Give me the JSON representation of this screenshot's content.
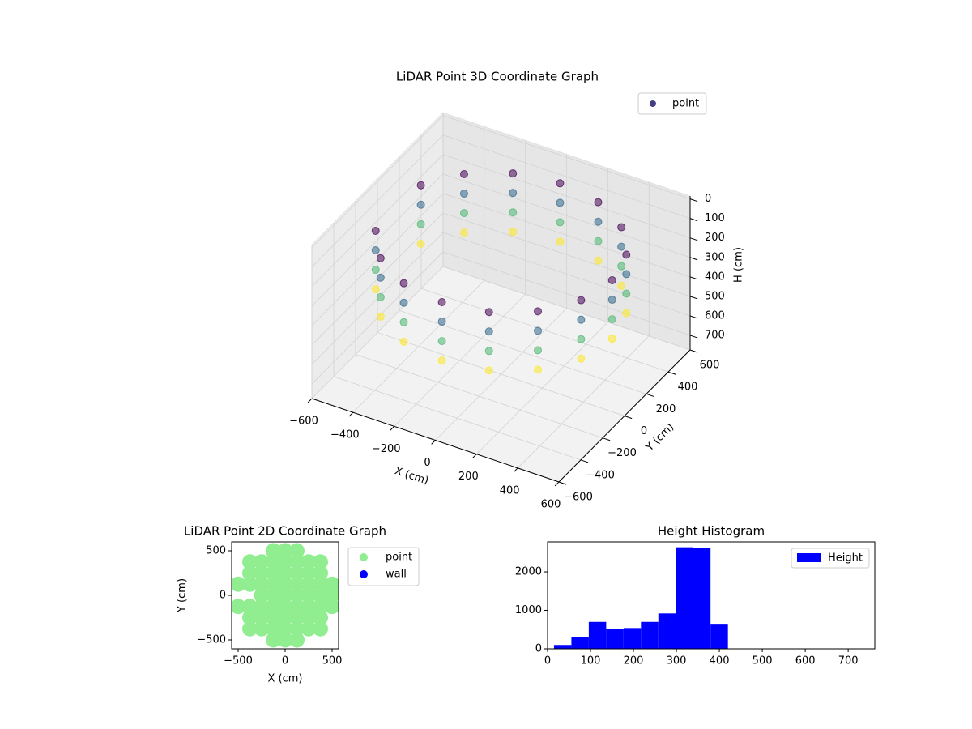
{
  "chart_data": [
    {
      "type": "scatter3d",
      "title": "LiDAR Point 3D Coordinate Graph",
      "xlabel": "X (cm)",
      "ylabel": "Y (cm)",
      "zlabel": "H (cm)",
      "xlim": [
        -600,
        600
      ],
      "ylim": [
        -600,
        600
      ],
      "zlim": [
        775,
        -15
      ],
      "xticks": [
        {
          "value": -600,
          "label": "−600"
        },
        {
          "value": -400,
          "label": "−400"
        },
        {
          "value": -200,
          "label": "−200"
        },
        0,
        200,
        400,
        600
      ],
      "yticks": [
        {
          "value": -600,
          "label": "−600"
        },
        {
          "value": -400,
          "label": "−400"
        },
        {
          "value": -200,
          "label": "−200"
        },
        0,
        200,
        400,
        600
      ],
      "zticks": [
        0,
        100,
        200,
        300,
        400,
        500,
        600,
        700
      ],
      "grid": true,
      "colormap": "viridis",
      "legend": "upper right",
      "series": [
        {
          "name": "point",
          "color": "#433e85",
          "x": [
            540,
            499,
            382,
            207,
            0,
            -207,
            -382,
            -499,
            -499,
            -382,
            -207,
            0,
            207,
            382,
            499,
            540,
            499,
            382,
            207,
            0,
            -207,
            -382,
            -499,
            -499,
            -382,
            -207,
            0,
            207,
            382,
            499,
            540,
            499,
            382,
            207,
            0,
            -207,
            -382,
            -499,
            -499,
            -382,
            -207,
            0,
            207,
            382,
            499,
            540,
            499,
            382,
            207,
            0,
            -207,
            -382,
            -499,
            -499,
            -382,
            -207,
            0,
            207,
            382,
            499
          ],
          "y": [
            0,
            207,
            382,
            499,
            540,
            499,
            382,
            207,
            -207,
            -382,
            -499,
            -540,
            -499,
            -382,
            -207,
            0,
            207,
            382,
            499,
            540,
            499,
            382,
            207,
            -207,
            -382,
            -499,
            -540,
            -499,
            -382,
            -207,
            0,
            207,
            382,
            499,
            540,
            499,
            382,
            207,
            -207,
            -382,
            -499,
            -540,
            -499,
            -382,
            -207,
            0,
            207,
            382,
            499,
            540,
            499,
            382,
            207,
            -207,
            -382,
            -499,
            -540,
            -499,
            -382,
            -207
          ],
          "z": [
            100,
            100,
            100,
            100,
            100,
            100,
            100,
            100,
            100,
            100,
            100,
            100,
            100,
            100,
            100,
            200,
            200,
            200,
            200,
            200,
            200,
            200,
            200,
            200,
            200,
            200,
            200,
            200,
            200,
            200,
            300,
            300,
            300,
            300,
            300,
            300,
            300,
            300,
            300,
            300,
            300,
            300,
            300,
            300,
            300,
            400,
            400,
            400,
            400,
            400,
            400,
            400,
            400,
            400,
            400,
            400,
            400,
            400,
            400,
            400
          ]
        }
      ]
    },
    {
      "type": "scatter",
      "title": "LiDAR Point 2D Coordinate Graph",
      "xlabel": "X (cm)",
      "ylabel": "Y (cm)",
      "xlim": [
        -569,
        569
      ],
      "ylim": [
        -600,
        600
      ],
      "xticks": [
        {
          "value": -500,
          "label": "−500"
        },
        0,
        500
      ],
      "yticks": [
        {
          "value": -500,
          "label": "−500"
        },
        0,
        500
      ],
      "legend": "outside upper right",
      "series": [
        {
          "name": "point",
          "color": "#90ee90",
          "x": [
            -125,
            0,
            125,
            -375,
            -250,
            -125,
            0,
            125,
            250,
            375,
            -375,
            -250,
            -125,
            0,
            125,
            250,
            375,
            -500,
            -375,
            -250,
            -125,
            0,
            125,
            250,
            375,
            500,
            -250,
            -125,
            0,
            125,
            250,
            375,
            500,
            -500,
            -375,
            -250,
            -125,
            0,
            125,
            250,
            375,
            500,
            -375,
            -250,
            -125,
            0,
            125,
            250,
            375,
            -375,
            -250,
            -125,
            0,
            125,
            250,
            375,
            -125,
            0,
            125
          ],
          "y": [
            500,
            500,
            500,
            375,
            375,
            375,
            375,
            375,
            375,
            375,
            250,
            250,
            250,
            250,
            250,
            250,
            250,
            125,
            125,
            125,
            125,
            125,
            125,
            125,
            125,
            125,
            0,
            0,
            0,
            0,
            0,
            0,
            0,
            -125,
            -125,
            -125,
            -125,
            -125,
            -125,
            -125,
            -125,
            -125,
            -250,
            -250,
            -250,
            -250,
            -250,
            -250,
            -250,
            -375,
            -375,
            -375,
            -375,
            -375,
            -375,
            -375,
            -500,
            -500,
            -500
          ]
        },
        {
          "name": "wall",
          "color": "#0000ff",
          "x": [],
          "y": []
        }
      ]
    },
    {
      "type": "histogram",
      "title": "Height Histogram",
      "xlim": [
        0,
        762
      ],
      "ylim": [
        0,
        2780
      ],
      "xticks": [
        0,
        100,
        200,
        300,
        400,
        500,
        600,
        700
      ],
      "yticks": [
        0,
        1000,
        2000
      ],
      "legend": "upper right",
      "series": [
        {
          "name": "Height",
          "color": "#0000ff",
          "bins": [
            15,
            55.5,
            96,
            136.5,
            177,
            217.5,
            258,
            298.5,
            339,
            379.5,
            420
          ],
          "values": [
            100,
            310,
            700,
            520,
            540,
            700,
            920,
            2640,
            2620,
            650
          ]
        }
      ]
    }
  ]
}
